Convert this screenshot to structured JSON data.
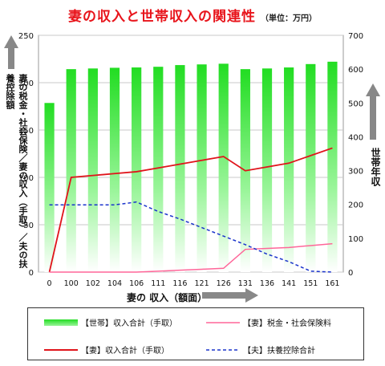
{
  "title": "妻の収入と世帯収入の関連性",
  "unit_note": "（単位：万円）",
  "left_axis_label": "妻の税金・社会保険／妻の収入（手取）／夫の扶養控除額",
  "right_axis_label": "世帯年収",
  "x_axis_label": "妻の 収入（額面）",
  "colors": {
    "household_bar": "#22dd22",
    "wife_takehome": "#e0141b",
    "wife_tax": "#ff6699",
    "husband_deduction": "#1a33cc",
    "arrow": "#888888"
  },
  "chart_data": {
    "type": "bar",
    "categories": [
      "0",
      "100",
      "102",
      "104",
      "106",
      "111",
      "116",
      "121",
      "126",
      "131",
      "136",
      "141",
      "151",
      "161"
    ],
    "left_ylim": [
      0,
      250
    ],
    "left_yticks": [
      "0",
      "50",
      "100",
      "150",
      "200",
      "250"
    ],
    "right_ylim": [
      0,
      700
    ],
    "right_yticks": [
      "0",
      "100",
      "200",
      "300",
      "400",
      "500",
      "600",
      "700"
    ],
    "grid": true,
    "legend_position": "bottom",
    "series": [
      {
        "name": "【世帯】収入合計（手取）",
        "type": "bar",
        "axis": "right",
        "values": [
          500,
          600,
          602,
          604,
          605,
          607,
          612,
          614,
          616,
          600,
          602,
          605,
          615,
          622
        ]
      },
      {
        "name": "【妻】収入合計（手取）",
        "type": "line",
        "axis": "left",
        "values": [
          0,
          100,
          102,
          104,
          106,
          110,
          114,
          118,
          122,
          107,
          111,
          115,
          123,
          131
        ]
      },
      {
        "name": "【妻】税金・社会保険料",
        "type": "line",
        "axis": "left",
        "values": [
          0,
          0,
          0,
          0,
          0,
          1,
          2,
          3,
          4,
          24,
          25,
          26,
          28,
          30
        ]
      },
      {
        "name": "【夫】扶養控除合計",
        "type": "line",
        "axis": "left",
        "dashed": true,
        "values": [
          71,
          71,
          71,
          71,
          74,
          64,
          56,
          47,
          38,
          29,
          19,
          11,
          1,
          0
        ]
      }
    ]
  }
}
